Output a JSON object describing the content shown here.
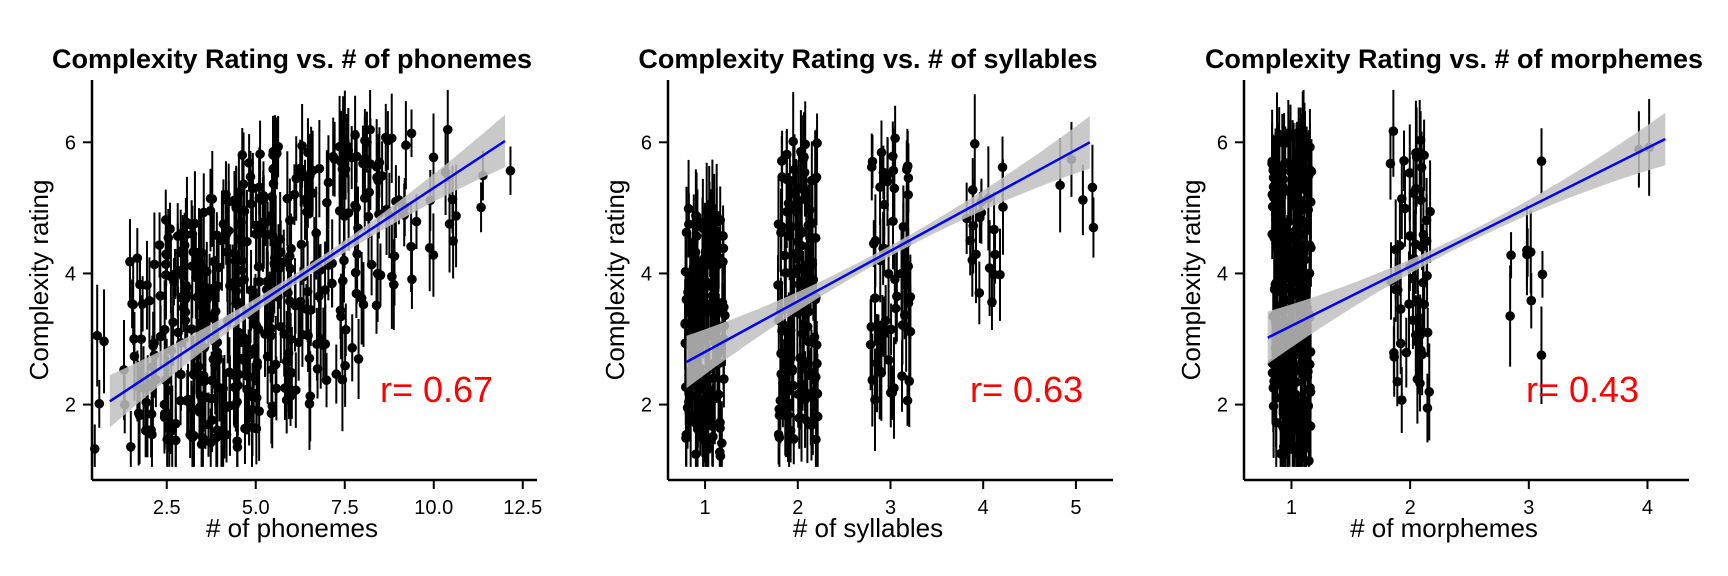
{
  "chart_data": [
    {
      "type": "scatter",
      "title": "Complexity Rating vs. # of phonemes",
      "xlabel": "# of phonemes",
      "ylabel": "Complexity rating",
      "xlim": [
        0.4,
        12.9
      ],
      "ylim": [
        0.85,
        6.95
      ],
      "xticks": [
        2.5,
        5.0,
        7.5,
        10.0,
        12.5
      ],
      "xtick_labels": [
        "2.5",
        "5.0",
        "7.5",
        "10.0",
        "12.5"
      ],
      "yticks": [
        2,
        4,
        6
      ],
      "ytick_labels": [
        "2",
        "4",
        "6"
      ],
      "annotation": "r= 0.67",
      "grid": false,
      "error_bars": true,
      "groups": [
        {
          "x": 1,
          "n": 6,
          "ymin": 1.3,
          "ymax": 3.4
        },
        {
          "x": 2,
          "n": 40,
          "ymin": 1.3,
          "ymax": 4.5
        },
        {
          "x": 3,
          "n": 70,
          "ymin": 1.3,
          "ymax": 5.0
        },
        {
          "x": 4,
          "n": 80,
          "ymin": 1.3,
          "ymax": 5.3
        },
        {
          "x": 5,
          "n": 80,
          "ymin": 1.6,
          "ymax": 6.0
        },
        {
          "x": 6,
          "n": 55,
          "ymin": 2.0,
          "ymax": 6.0
        },
        {
          "x": 7,
          "n": 45,
          "ymin": 2.3,
          "ymax": 6.0
        },
        {
          "x": 8,
          "n": 35,
          "ymin": 2.6,
          "ymax": 6.2
        },
        {
          "x": 9,
          "n": 18,
          "ymin": 3.8,
          "ymax": 6.2
        },
        {
          "x": 10,
          "n": 8,
          "ymin": 4.1,
          "ymax": 6.4
        },
        {
          "x": 11,
          "n": 5,
          "ymin": 4.7,
          "ymax": 5.9
        },
        {
          "x": 12,
          "n": 1,
          "ymin": 5.5,
          "ymax": 5.6
        }
      ],
      "fit": {
        "x": [
          0.9,
          12.0
        ],
        "y": [
          2.05,
          6.02
        ],
        "ci_color": "#bfbfbf",
        "line_color": "#0000ff"
      }
    },
    {
      "type": "scatter",
      "title": "Complexity Rating vs. # of syllables",
      "xlabel": "# of syllables",
      "ylabel": "Complexity rating",
      "xlim": [
        0.6,
        5.4
      ],
      "ylim": [
        0.85,
        6.95
      ],
      "xticks": [
        1,
        2,
        3,
        4,
        5
      ],
      "xtick_labels": [
        "1",
        "2",
        "3",
        "4",
        "5"
      ],
      "yticks": [
        2,
        4,
        6
      ],
      "ytick_labels": [
        "2",
        "4",
        "6"
      ],
      "annotation": "r= 0.63",
      "grid": false,
      "error_bars": true,
      "groups": [
        {
          "x": 1,
          "n": 160,
          "ymin": 1.2,
          "ymax": 5.0
        },
        {
          "x": 2,
          "n": 130,
          "ymin": 1.4,
          "ymax": 6.1
        },
        {
          "x": 3,
          "n": 60,
          "ymin": 2.0,
          "ymax": 6.1
        },
        {
          "x": 4,
          "n": 20,
          "ymin": 3.4,
          "ymax": 6.1
        },
        {
          "x": 5,
          "n": 5,
          "ymin": 4.7,
          "ymax": 6.0
        }
      ],
      "fit": {
        "x": [
          0.8,
          5.15
        ],
        "y": [
          2.65,
          6.0
        ],
        "ci_color": "#bfbfbf",
        "line_color": "#0000ff"
      }
    },
    {
      "type": "scatter",
      "title": "Complexity Rating vs. # of morphemes",
      "xlabel": "# of morphemes",
      "ylabel": "Complexity rating",
      "xlim": [
        0.6,
        4.35
      ],
      "ylim": [
        0.85,
        6.95
      ],
      "xticks": [
        1,
        2,
        3,
        4
      ],
      "xtick_labels": [
        "1",
        "2",
        "3",
        "4"
      ],
      "yticks": [
        2,
        4,
        6
      ],
      "ytick_labels": [
        "2",
        "4",
        "6"
      ],
      "annotation": "r= 0.43",
      "grid": false,
      "error_bars": true,
      "groups": [
        {
          "x": 1,
          "n": 260,
          "ymin": 1.1,
          "ymax": 6.2
        },
        {
          "x": 2,
          "n": 55,
          "ymin": 1.8,
          "ymax": 6.3
        },
        {
          "x": 3,
          "n": 10,
          "ymin": 2.7,
          "ymax": 5.9
        },
        {
          "x": 4,
          "n": 2,
          "ymin": 4.6,
          "ymax": 6.0
        }
      ],
      "fit": {
        "x": [
          0.8,
          4.15
        ],
        "y": [
          3.02,
          6.05
        ],
        "ci_color": "#bfbfbf",
        "line_color": "#0000ff"
      }
    }
  ]
}
